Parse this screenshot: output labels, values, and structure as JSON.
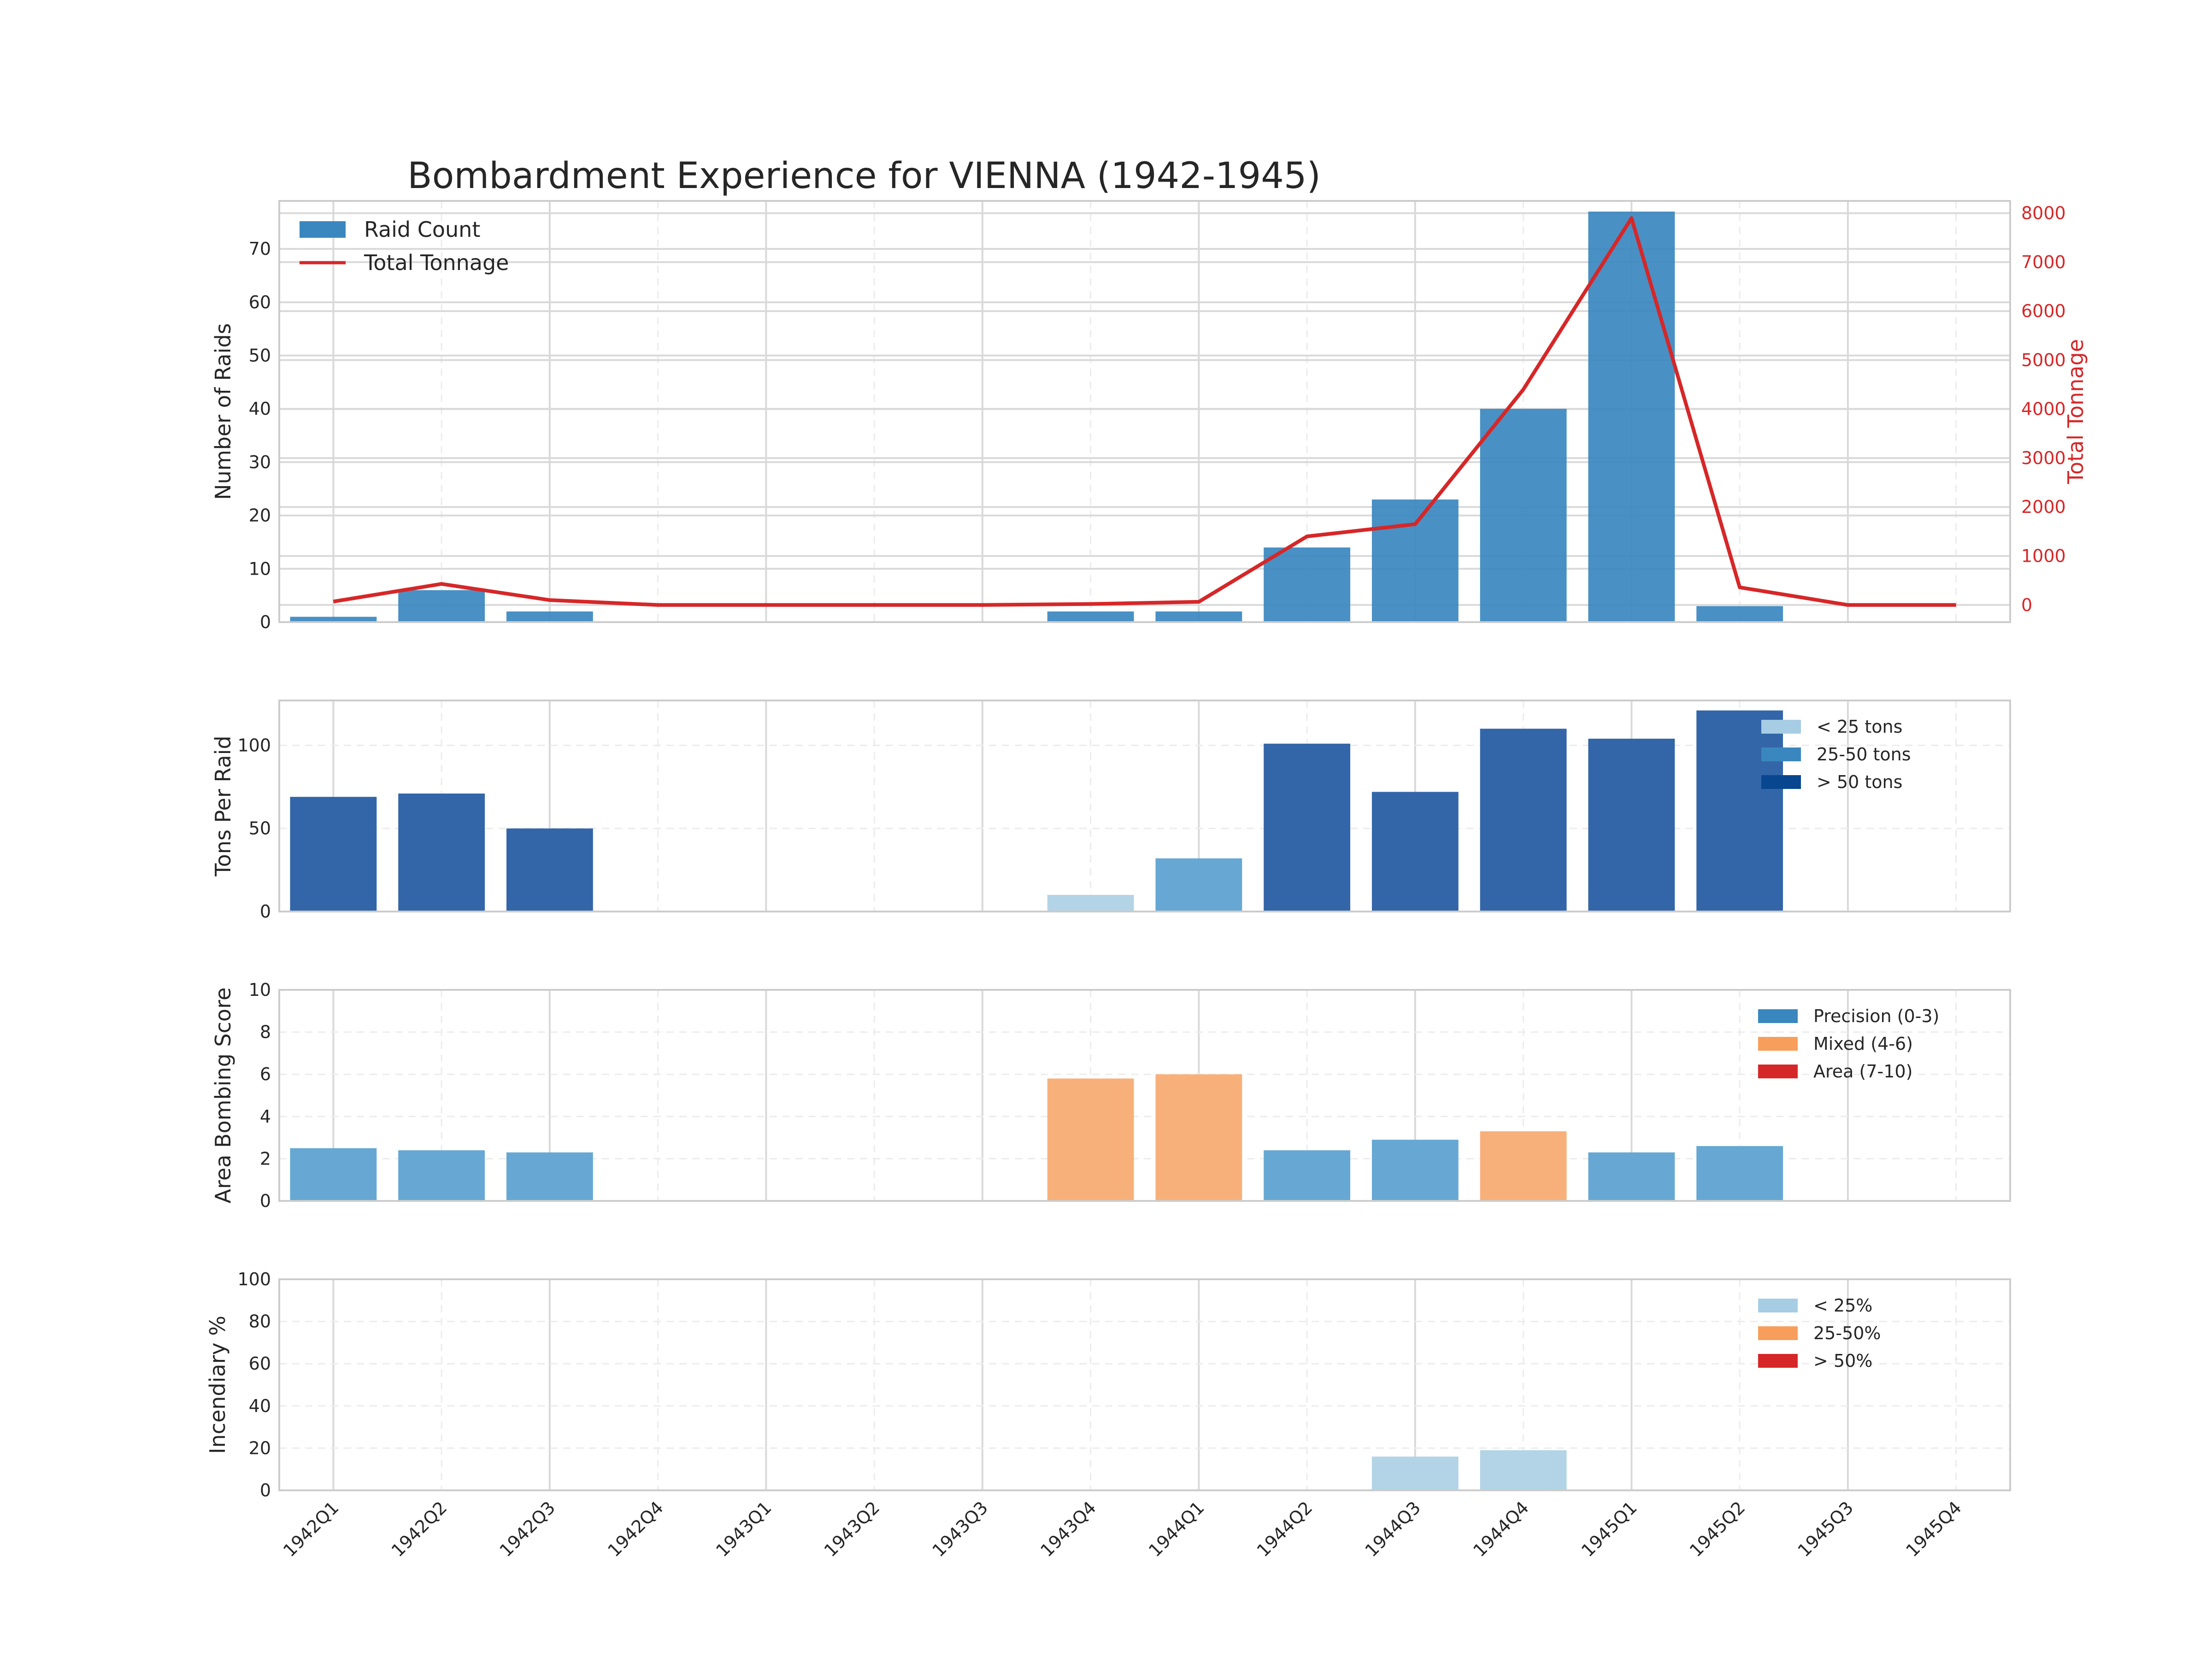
{
  "chart_data": [
    {
      "type": "bar",
      "title": "Bombardment Experience for VIENNA (1942-1945)",
      "categories": [
        "1942Q1",
        "1942Q2",
        "1942Q3",
        "1942Q4",
        "1943Q1",
        "1943Q2",
        "1943Q3",
        "1943Q4",
        "1944Q1",
        "1944Q2",
        "1944Q3",
        "1944Q4",
        "1945Q1",
        "1945Q2",
        "1945Q3",
        "1945Q4"
      ],
      "ylabel": "Number of Raids",
      "ylim": [
        0,
        79
      ],
      "yticks": [
        0,
        10,
        20,
        30,
        40,
        50,
        60,
        70
      ],
      "y2label": "Total Tonnage",
      "y2lim": [
        -350,
        8250
      ],
      "y2ticks": [
        0,
        1000,
        2000,
        3000,
        4000,
        5000,
        6000,
        7000,
        8000
      ],
      "legend_position": "top-left",
      "series": [
        {
          "name": "Raid Count",
          "kind": "bar",
          "axis": "left",
          "color": "#3a87bf",
          "values": [
            1,
            6,
            2,
            0,
            0,
            0,
            0,
            2,
            2,
            14,
            23,
            40,
            77,
            3,
            0,
            0
          ]
        },
        {
          "name": "Total Tonnage",
          "kind": "line",
          "axis": "right",
          "color": "#d62728",
          "values": [
            70,
            430,
            100,
            0,
            0,
            0,
            0,
            20,
            65,
            1400,
            1650,
            4400,
            7900,
            360,
            0,
            0
          ]
        }
      ]
    },
    {
      "type": "bar",
      "ylabel": "Tons Per Raid",
      "ylim": [
        0,
        127
      ],
      "yticks": [
        0,
        50,
        100
      ],
      "legend_position": "top-right",
      "legend": [
        {
          "label": "< 25 tons",
          "color": "#a6cde3"
        },
        {
          "label": "25-50 tons",
          "color": "#3a87bf"
        },
        {
          "label": "> 50 tons",
          "color": "#08478f"
        }
      ],
      "values": [
        69,
        71,
        50,
        null,
        null,
        null,
        null,
        10,
        32,
        101,
        72,
        110,
        104,
        121,
        null,
        null
      ],
      "bar_colors": [
        "#3366a8",
        "#3366a8",
        "#3366a8",
        null,
        null,
        null,
        null,
        "#b3d4e6",
        "#66a8d3",
        "#3366a8",
        "#3366a8",
        "#3366a8",
        "#3366a8",
        "#3366a8",
        null,
        null
      ]
    },
    {
      "type": "bar",
      "ylabel": "Area Bombing Score",
      "ylim": [
        0,
        10
      ],
      "yticks": [
        0,
        2,
        4,
        6,
        8,
        10
      ],
      "legend_position": "top-right",
      "legend": [
        {
          "label": "Precision (0-3)",
          "color": "#3a87bf"
        },
        {
          "label": "Mixed (4-6)",
          "color": "#f79e5c"
        },
        {
          "label": "Area (7-10)",
          "color": "#d62728"
        }
      ],
      "values": [
        2.5,
        2.4,
        2.3,
        null,
        null,
        null,
        null,
        5.8,
        6.0,
        2.4,
        2.9,
        3.3,
        2.3,
        2.6,
        null,
        null
      ],
      "bar_colors": [
        "#66a8d3",
        "#66a8d3",
        "#66a8d3",
        null,
        null,
        null,
        null,
        "#f8b07a",
        "#f8b07a",
        "#66a8d3",
        "#66a8d3",
        "#f8b07a",
        "#66a8d3",
        "#66a8d3",
        null,
        null
      ]
    },
    {
      "type": "bar",
      "ylabel": "Incendiary %",
      "ylim": [
        0,
        100
      ],
      "yticks": [
        0,
        20,
        40,
        60,
        80,
        100
      ],
      "legend_position": "top-right",
      "legend": [
        {
          "label": "< 25%",
          "color": "#a6cde3"
        },
        {
          "label": "25-50%",
          "color": "#f79e5c"
        },
        {
          "label": "> 50%",
          "color": "#d62728"
        }
      ],
      "values": [
        null,
        null,
        null,
        null,
        null,
        null,
        null,
        null,
        null,
        null,
        16,
        19,
        null,
        null,
        null,
        null
      ],
      "bar_colors": [
        null,
        null,
        null,
        null,
        null,
        null,
        null,
        null,
        null,
        null,
        "#b3d4e6",
        "#b3d4e6",
        null,
        null,
        null,
        null
      ]
    }
  ]
}
